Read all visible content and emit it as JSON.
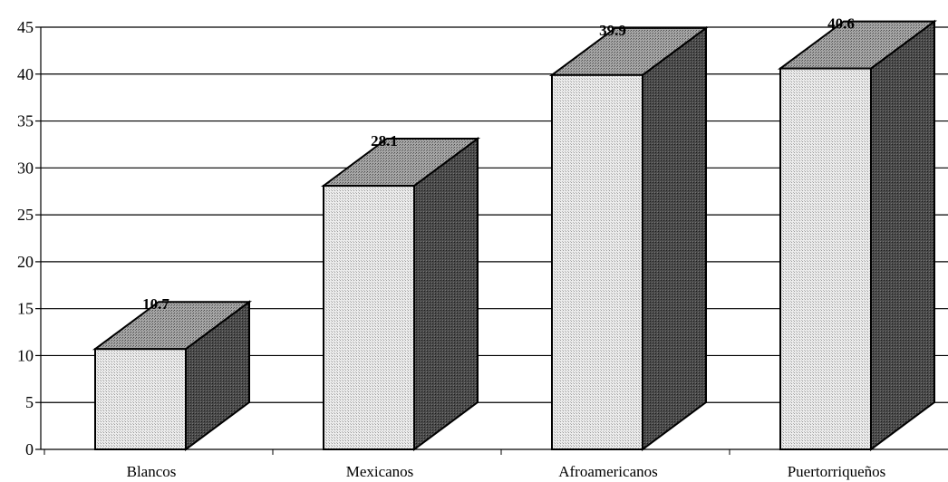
{
  "chart_data": {
    "type": "bar",
    "categories": [
      "Blancos",
      "Mexicanos",
      "Afroamericanos",
      "Puertorriqueños"
    ],
    "values": [
      10.7,
      28.1,
      39.9,
      40.6
    ],
    "value_labels": [
      "10.7",
      "28.1",
      "39.9",
      "40.6"
    ],
    "y_ticks": [
      "0",
      "5",
      "10",
      "15",
      "20",
      "25",
      "30",
      "35",
      "40",
      "45"
    ],
    "ylim": [
      0,
      45
    ],
    "title": "",
    "xlabel": "",
    "ylabel": "",
    "grid": true,
    "style": "3d-box",
    "colors": {
      "front": "#dcdcdc",
      "top": "#8c8c8c",
      "side": "#3a3a3a",
      "grid": "#000000"
    }
  }
}
